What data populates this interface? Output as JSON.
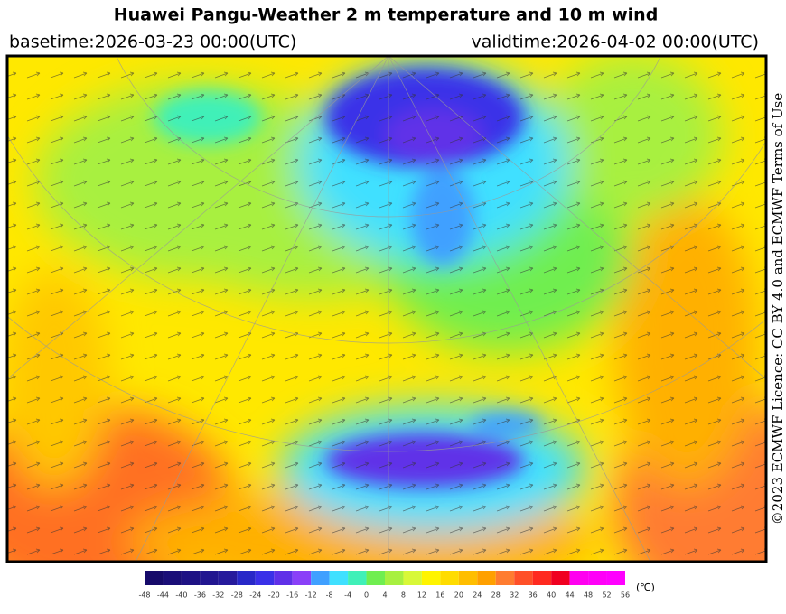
{
  "header": {
    "title": "Huawei Pangu-Weather  2 m temperature and 10 m wind",
    "basetime": "basetime:2026-03-23 00:00(UTC)",
    "validtime": "validtime:2026-04-02 00:00(UTC)"
  },
  "credit": "©2023 ECMWF Licence: CC BY 4.0 and ECMWF  Terms of Use",
  "colorbar": {
    "unit": "(℃)",
    "ticks": [
      -48,
      -44,
      -40,
      -36,
      -32,
      -28,
      -24,
      -20,
      -16,
      -12,
      -8,
      -4,
      0,
      4,
      8,
      12,
      16,
      20,
      24,
      28,
      32,
      36,
      40,
      44,
      48,
      52,
      56
    ],
    "colors": [
      "#160a6a",
      "#1a0e78",
      "#1e1284",
      "#221690",
      "#261a9c",
      "#2828c8",
      "#3a30e8",
      "#6030e8",
      "#8a40f8",
      "#40a0ff",
      "#40e0ff",
      "#40f0b8",
      "#70ee50",
      "#a8f040",
      "#d8f838",
      "#fff400",
      "#ffdc00",
      "#ffbe00",
      "#ffa000",
      "#ff7c30",
      "#ff5028",
      "#ff2a20",
      "#f00020",
      "#ff00f0",
      "#ff00f8",
      "#ff00ff"
    ]
  }
}
